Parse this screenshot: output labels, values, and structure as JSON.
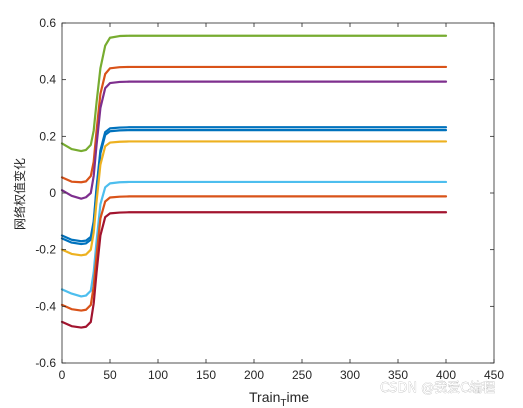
{
  "chart_data": {
    "type": "line",
    "title": "",
    "xlabel": "Train_Time",
    "xlabel_main": "Train",
    "xlabel_sub": "T",
    "xlabel_rest": "ime",
    "ylabel": "网络权值变化",
    "xlim": [
      0,
      450
    ],
    "ylim": [
      -0.6,
      0.6
    ],
    "xticks": [
      "0",
      "50",
      "100",
      "150",
      "200",
      "250",
      "300",
      "350",
      "400",
      "450"
    ],
    "yticks": [
      "-0.6",
      "-0.4",
      "-0.2",
      "0",
      "0.2",
      "0.4",
      "0.6"
    ],
    "grid": false,
    "box": true,
    "x": [
      0,
      10,
      20,
      25,
      30,
      33,
      36,
      40,
      45,
      50,
      60,
      70,
      80,
      100,
      150,
      200,
      250,
      300,
      350,
      400
    ],
    "series": [
      {
        "color": "#77ac30",
        "values": [
          0.175,
          0.155,
          0.148,
          0.152,
          0.17,
          0.22,
          0.32,
          0.44,
          0.52,
          0.548,
          0.554,
          0.555,
          0.555,
          0.555,
          0.555,
          0.555,
          0.555,
          0.555,
          0.555,
          0.555
        ]
      },
      {
        "color": "#d95319",
        "values": [
          0.055,
          0.04,
          0.038,
          0.041,
          0.06,
          0.11,
          0.22,
          0.35,
          0.42,
          0.44,
          0.444,
          0.445,
          0.445,
          0.445,
          0.445,
          0.445,
          0.445,
          0.445,
          0.445,
          0.445
        ]
      },
      {
        "color": "#7e2f8e",
        "values": [
          0.01,
          -0.01,
          -0.02,
          -0.015,
          0.0,
          0.06,
          0.17,
          0.3,
          0.37,
          0.388,
          0.392,
          0.393,
          0.393,
          0.393,
          0.393,
          0.393,
          0.393,
          0.393,
          0.393,
          0.393
        ]
      },
      {
        "color": "#0072bd",
        "values": [
          -0.15,
          -0.165,
          -0.17,
          -0.168,
          -0.155,
          -0.1,
          0.02,
          0.15,
          0.215,
          0.228,
          0.231,
          0.232,
          0.232,
          0.232,
          0.232,
          0.232,
          0.232,
          0.232,
          0.232,
          0.232
        ]
      },
      {
        "color": "#0072bd",
        "values": [
          -0.16,
          -0.175,
          -0.18,
          -0.178,
          -0.165,
          -0.11,
          0.01,
          0.14,
          0.205,
          0.218,
          0.221,
          0.222,
          0.222,
          0.222,
          0.222,
          0.222,
          0.222,
          0.222,
          0.222,
          0.222
        ]
      },
      {
        "color": "#edb120",
        "values": [
          -0.2,
          -0.215,
          -0.22,
          -0.217,
          -0.2,
          -0.14,
          -0.03,
          0.1,
          0.165,
          0.178,
          0.181,
          0.182,
          0.182,
          0.182,
          0.182,
          0.182,
          0.182,
          0.182,
          0.182,
          0.182
        ]
      },
      {
        "color": "#4dbeee",
        "values": [
          -0.34,
          -0.355,
          -0.365,
          -0.362,
          -0.345,
          -0.28,
          -0.17,
          -0.04,
          0.02,
          0.034,
          0.038,
          0.039,
          0.039,
          0.039,
          0.039,
          0.039,
          0.039,
          0.039,
          0.039,
          0.039
        ]
      },
      {
        "color": "#d95319",
        "values": [
          -0.395,
          -0.41,
          -0.415,
          -0.412,
          -0.395,
          -0.33,
          -0.22,
          -0.09,
          -0.03,
          -0.016,
          -0.013,
          -0.012,
          -0.012,
          -0.012,
          -0.012,
          -0.012,
          -0.012,
          -0.012,
          -0.012,
          -0.012
        ]
      },
      {
        "color": "#a2142f",
        "values": [
          -0.455,
          -0.47,
          -0.475,
          -0.472,
          -0.455,
          -0.39,
          -0.28,
          -0.15,
          -0.085,
          -0.072,
          -0.069,
          -0.068,
          -0.068,
          -0.068,
          -0.068,
          -0.068,
          -0.068,
          -0.068,
          -0.068,
          -0.068
        ]
      }
    ]
  },
  "watermark": {
    "text": "CSDN @我爱C编程"
  }
}
